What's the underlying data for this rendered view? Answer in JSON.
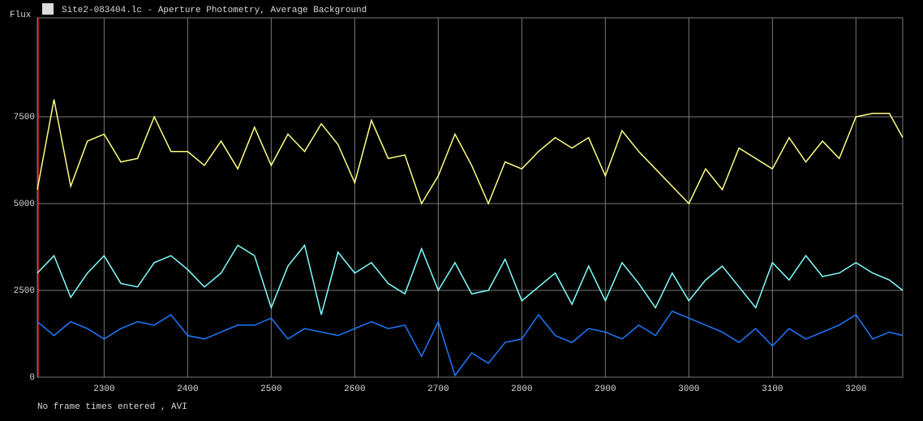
{
  "chart_data": {
    "type": "line",
    "title": "Site2-083404.lc - Aperture Photometry, Average Background",
    "y_label": "Flux",
    "footer": "No frame times entered , AVI",
    "grid": true,
    "xlim": [
      2220,
      3256
    ],
    "ylim": [
      0,
      10350
    ],
    "xticks": [
      2300,
      2400,
      2500,
      2600,
      2700,
      2800,
      2900,
      3000,
      3100,
      3200
    ],
    "yticks": [
      0,
      2500,
      5000,
      7500
    ],
    "x": [
      2220,
      2240,
      2260,
      2280,
      2300,
      2320,
      2340,
      2360,
      2380,
      2400,
      2420,
      2440,
      2460,
      2480,
      2500,
      2520,
      2540,
      2560,
      2580,
      2600,
      2620,
      2640,
      2660,
      2680,
      2700,
      2720,
      2740,
      2760,
      2780,
      2800,
      2820,
      2840,
      2860,
      2880,
      2900,
      2920,
      2940,
      2960,
      2980,
      3000,
      3020,
      3040,
      3060,
      3080,
      3100,
      3120,
      3140,
      3160,
      3180,
      3200,
      3220,
      3240,
      3256
    ],
    "series": [
      {
        "color": "#ffff80",
        "values": [
          5400,
          8000,
          5500,
          6800,
          7000,
          6200,
          6300,
          7500,
          6500,
          6500,
          6100,
          6800,
          6000,
          7200,
          6100,
          7000,
          6500,
          7300,
          6700,
          5600,
          7400,
          6300,
          6400,
          5000,
          5800,
          7000,
          6100,
          5000,
          6200,
          6000,
          6500,
          6900,
          6600,
          6900,
          5800,
          7100,
          6500,
          6000,
          5500,
          5000,
          6000,
          5400,
          6600,
          6300,
          6000,
          6900,
          6200,
          6800,
          6300,
          7500,
          7600,
          7600,
          6900
        ]
      },
      {
        "color": "#80ffff",
        "values": [
          3000,
          3500,
          2300,
          3000,
          3500,
          2700,
          2600,
          3300,
          3500,
          3100,
          2600,
          3000,
          3800,
          3500,
          2000,
          3200,
          3800,
          1800,
          3600,
          3000,
          3300,
          2700,
          2400,
          3700,
          2500,
          3300,
          2400,
          2500,
          3400,
          2200,
          2600,
          3000,
          2100,
          3200,
          2200,
          3300,
          2700,
          2000,
          3000,
          2200,
          2800,
          3200,
          2600,
          2000,
          3300,
          2800,
          3500,
          2900,
          3000,
          3300,
          3000,
          2800,
          2500
        ]
      },
      {
        "color": "#1e78ff",
        "values": [
          1600,
          1200,
          1600,
          1400,
          1100,
          1400,
          1600,
          1500,
          1800,
          1200,
          1100,
          1300,
          1500,
          1500,
          1700,
          1100,
          1400,
          1300,
          1200,
          1400,
          1600,
          1400,
          1500,
          600,
          1600,
          50,
          700,
          400,
          1000,
          1100,
          1800,
          1200,
          1000,
          1400,
          1300,
          1100,
          1500,
          1200,
          1900,
          1700,
          1500,
          1300,
          1000,
          1400,
          900,
          1400,
          1100,
          1300,
          1500,
          1800,
          1100,
          1300,
          1200
        ]
      }
    ]
  }
}
